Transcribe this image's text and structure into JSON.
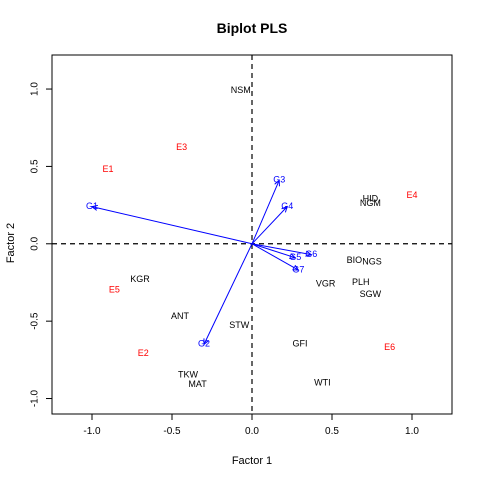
{
  "chart_data": {
    "type": "scatter",
    "title": "Biplot PLS",
    "xlabel": "Factor 1",
    "ylabel": "Factor 2",
    "xlim": [
      -1.25,
      1.25
    ],
    "ylim": [
      -1.1,
      1.22
    ],
    "xticks": [
      "-1.0",
      "-0.5",
      "0.0",
      "0.5",
      "1.0"
    ],
    "yticks": [
      "-1.0",
      "-0.5",
      "0.0",
      "0.5",
      "1.0"
    ],
    "reference_lines": {
      "x": 0,
      "y": 0,
      "style": "dashed"
    },
    "colors": {
      "variables": "#000000",
      "environments": "#ff0000",
      "genotypes": "#0000ff"
    },
    "series": [
      {
        "group": "variables",
        "points": [
          {
            "label": "NSM",
            "x": -0.07,
            "y": 0.99
          },
          {
            "label": "HID",
            "x": 0.74,
            "y": 0.29
          },
          {
            "label": "NGM",
            "x": 0.74,
            "y": 0.26
          },
          {
            "label": "BIO",
            "x": 0.64,
            "y": -0.11
          },
          {
            "label": "NGS",
            "x": 0.75,
            "y": -0.12
          },
          {
            "label": "VGR",
            "x": 0.46,
            "y": -0.26
          },
          {
            "label": "PLH",
            "x": 0.68,
            "y": -0.25
          },
          {
            "label": "SGW",
            "x": 0.74,
            "y": -0.33
          },
          {
            "label": "KGR",
            "x": -0.7,
            "y": -0.23
          },
          {
            "label": "ANT",
            "x": -0.45,
            "y": -0.47
          },
          {
            "label": "STW",
            "x": -0.08,
            "y": -0.53
          },
          {
            "label": "GFI",
            "x": 0.3,
            "y": -0.65
          },
          {
            "label": "TKW",
            "x": -0.4,
            "y": -0.85
          },
          {
            "label": "MAT",
            "x": -0.34,
            "y": -0.91
          },
          {
            "label": "WTI",
            "x": 0.44,
            "y": -0.9
          }
        ]
      },
      {
        "group": "environments",
        "points": [
          {
            "label": "E1",
            "x": -0.9,
            "y": 0.48
          },
          {
            "label": "E3",
            "x": -0.44,
            "y": 0.62
          },
          {
            "label": "E4",
            "x": 1.0,
            "y": 0.31
          },
          {
            "label": "E5",
            "x": -0.86,
            "y": -0.3
          },
          {
            "label": "E2",
            "x": -0.68,
            "y": -0.71
          },
          {
            "label": "E6",
            "x": 0.86,
            "y": -0.67
          }
        ]
      },
      {
        "group": "genotypes",
        "points": [
          {
            "label": "G1",
            "x": -1.0,
            "y": 0.24
          },
          {
            "label": "G3",
            "x": 0.17,
            "y": 0.41
          },
          {
            "label": "G4",
            "x": 0.22,
            "y": 0.24
          },
          {
            "label": "G5",
            "x": 0.27,
            "y": -0.09
          },
          {
            "label": "G6",
            "x": 0.37,
            "y": -0.07
          },
          {
            "label": "G7",
            "x": 0.29,
            "y": -0.17
          },
          {
            "label": "G2",
            "x": -0.3,
            "y": -0.65
          }
        ]
      }
    ]
  }
}
